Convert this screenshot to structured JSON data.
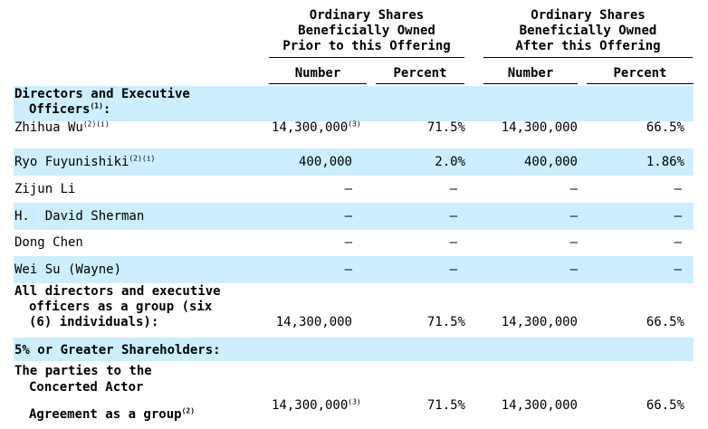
{
  "header": {
    "before_lines": [
      "Ordinary Shares",
      "Beneficially Owned",
      "Prior to this Offering"
    ],
    "after_lines": [
      "Ordinary Shares",
      "Beneficially Owned",
      "After this Offering"
    ],
    "number": "Number",
    "percent": "Percent"
  },
  "sections": {
    "directors_line1": "Directors and Executive",
    "directors_line2": "Officers",
    "directors_note": "(1)",
    "holders": "5% or Greater Shareholders:"
  },
  "rows": [
    {
      "name": "Zhihua Wu",
      "note": "(2)(i)",
      "n1": "14,300,000",
      "n1_note": "(3)",
      "p1": "71.5%",
      "n2": "14,300,000",
      "p2": "66.5%"
    },
    {
      "name": "Ryo Fuyunishiki",
      "note": "(2)(i)",
      "n1": "400,000",
      "n1_note": "",
      "p1": "2.0%",
      "n2": "400,000",
      "p2": "1.86%"
    },
    {
      "name": "Zijun Li",
      "note": "",
      "n1": "—",
      "p1": "—",
      "n2": "—",
      "p2": "—"
    },
    {
      "name": "H.  David Sherman",
      "note": "",
      "n1": "—",
      "p1": "—",
      "n2": "—",
      "p2": "—"
    },
    {
      "name": "Dong Chen",
      "note": "",
      "n1": "—",
      "p1": "—",
      "n2": "—",
      "p2": "—"
    },
    {
      "name": "Wei Su (Wayne)",
      "note": "",
      "n1": "—",
      "p1": "—",
      "n2": "—",
      "p2": "—"
    }
  ],
  "group_row": {
    "line1": "All directors and executive",
    "line2": "officers as a group (six",
    "line3": "(6) individuals):",
    "n1": "14,300,000",
    "p1": "71.5%",
    "n2": "14,300,000",
    "p2": "66.5%"
  },
  "concert_row": {
    "line1": "The parties to the",
    "line2": "Concerted Actor",
    "line3": "Agreement as a group",
    "note": "(2)",
    "n1": "14,300,000",
    "n1_note": "(3)",
    "p1": "71.5%",
    "n2": "14,300,000",
    "p2": "66.5%"
  }
}
